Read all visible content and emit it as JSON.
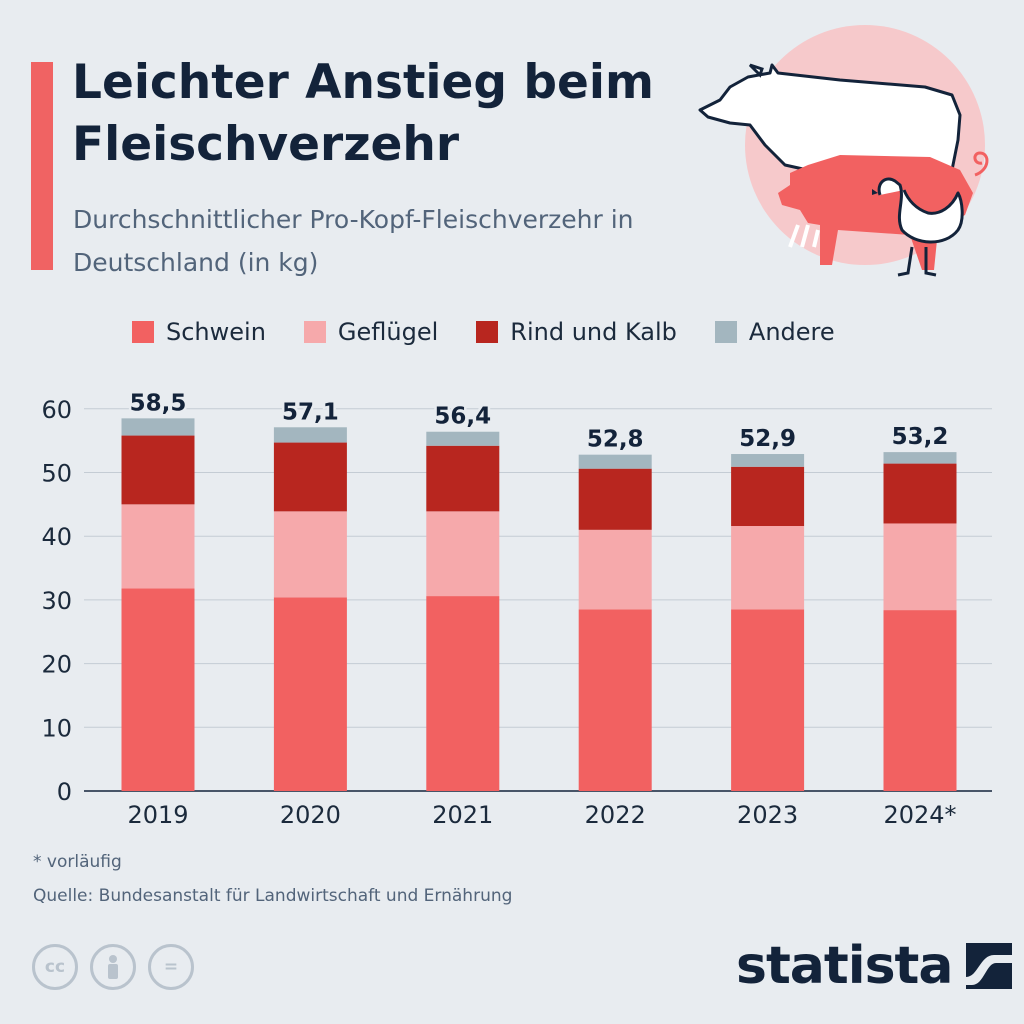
{
  "header": {
    "title": "Leichter Anstieg beim Fleischverzehr",
    "subtitle": "Durchschnittlicher Pro-Kopf-Fleischverzehr in Deutschland (in kg)"
  },
  "colors": {
    "accent": "#f06363",
    "schwein": "#f26161",
    "gefluegel": "#f6a9ab",
    "rind": "#b8261f",
    "andere": "#a3b6bf",
    "text_dark": "#13233a",
    "text_muted": "#52647a"
  },
  "illustration": {
    "icons": [
      "cow-icon",
      "pig-icon",
      "chicken-icon"
    ]
  },
  "chart_data": {
    "type": "bar",
    "stacked": true,
    "title": "Leichter Anstieg beim Fleischverzehr",
    "subtitle": "Durchschnittlicher Pro-Kopf-Fleischverzehr in Deutschland (in kg)",
    "categories": [
      "2019",
      "2020",
      "2021",
      "2022",
      "2023",
      "2024*"
    ],
    "series": [
      {
        "name": "Schwein",
        "values": [
          31.8,
          30.4,
          30.6,
          28.5,
          28.5,
          28.4
        ]
      },
      {
        "name": "Geflügel",
        "values": [
          13.2,
          13.5,
          13.3,
          12.5,
          13.1,
          13.6
        ]
      },
      {
        "name": "Rind und Kalb",
        "values": [
          10.8,
          10.8,
          10.3,
          9.6,
          9.3,
          9.4
        ]
      },
      {
        "name": "Andere",
        "values": [
          2.7,
          2.4,
          2.2,
          2.2,
          2.0,
          1.8
        ]
      }
    ],
    "totals": [
      58.5,
      57.1,
      56.4,
      52.8,
      52.9,
      53.2
    ],
    "total_labels": [
      "58,5",
      "57,1",
      "56,4",
      "52,8",
      "52,9",
      "53,2"
    ],
    "yticks": [
      0,
      10,
      20,
      30,
      40,
      50,
      60
    ],
    "ylim": [
      0,
      64
    ],
    "xlabel": "",
    "ylabel": "",
    "grid": true,
    "legend_position": "top"
  },
  "footnote": "* vorläufig",
  "source": "Quelle: Bundesanstalt für Landwirtschaft und Ernährung",
  "license": {
    "icons": [
      "cc-icon",
      "by-icon",
      "nd-icon"
    ],
    "cc_text": "cc",
    "nd_text": "="
  },
  "brand": {
    "name": "statista"
  }
}
